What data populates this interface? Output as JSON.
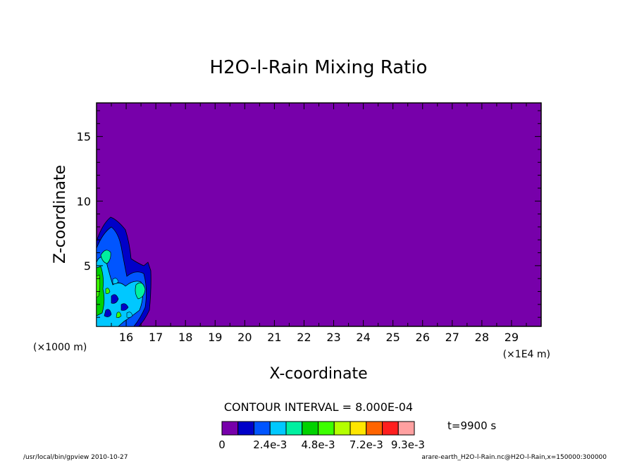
{
  "chart_data": {
    "type": "contour",
    "title": "H2O-l-Rain Mixing Ratio",
    "xlabel": "X-coordinate",
    "ylabel": "Z-coordinate",
    "x_unit_left": "(×1000 m)",
    "x_unit_right": "(×1E4 m)",
    "xlim": [
      15.0,
      30.0
    ],
    "ylim": [
      0.3,
      17.6
    ],
    "x_ticks": [
      "16",
      "17",
      "18",
      "19",
      "20",
      "21",
      "22",
      "23",
      "24",
      "25",
      "26",
      "27",
      "28",
      "29"
    ],
    "y_ticks": [
      "5",
      "10",
      "15"
    ],
    "contour_interval": "CONTOUR INTERVAL = 8.000E-04",
    "time_label": "t=9900 s",
    "colorbar": {
      "colors": [
        "#7700aa",
        "#0000c8",
        "#0055ff",
        "#00c8ff",
        "#00f0a0",
        "#00d200",
        "#3cff00",
        "#b4ff00",
        "#ffe600",
        "#ff6400",
        "#ff1e1e",
        "#ffa0a0"
      ],
      "labels": [
        "0",
        "2.4e-3",
        "4.8e-3",
        "7.2e-3",
        "9.3e-3"
      ]
    },
    "background_color": "#7700aa",
    "footer_left": "/usr/local/bin/gpview  2010-10-27",
    "footer_right": "arare-earth_H2O-l-Rain.nc@H2O-l-Rain,x=150000:300000"
  }
}
